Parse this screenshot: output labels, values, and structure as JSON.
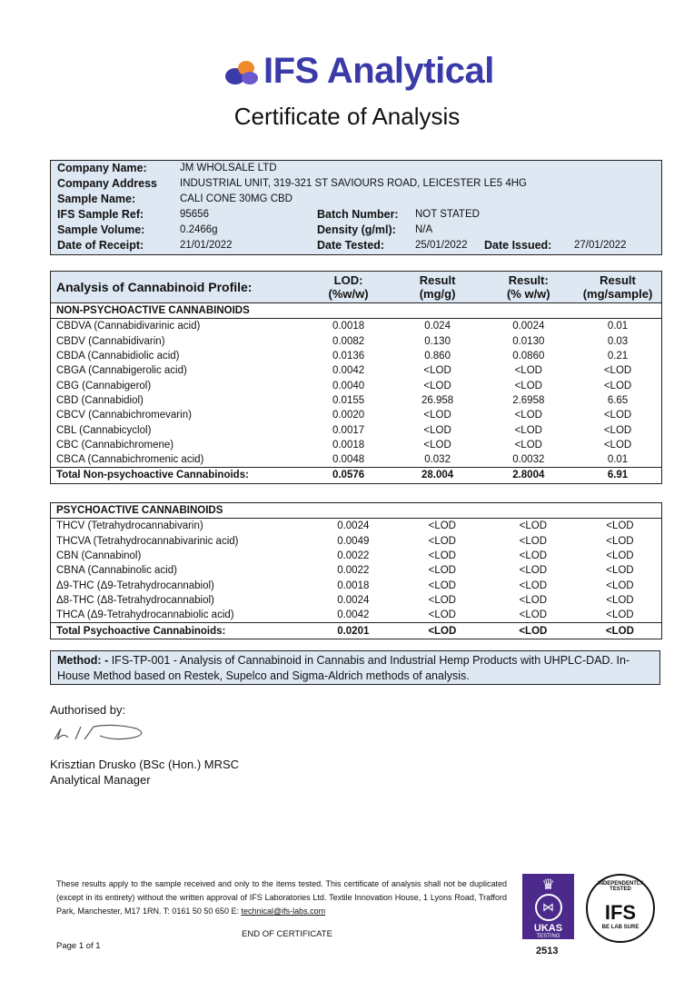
{
  "brand": {
    "name": "IFS Analytical",
    "colors": {
      "primary": "#3a3aa8",
      "accent": "#f08a2a"
    }
  },
  "title": "Certificate of Analysis",
  "info": [
    {
      "label": "Company Name:",
      "value": "JM WHOLSALE LTD"
    },
    {
      "label": "Company Address",
      "value": "INDUSTRIAL UNIT, 319-321 ST SAVIOURS ROAD, LEICESTER LE5 4HG"
    },
    {
      "label": "Sample Name:",
      "value": "CALI CONE 30MG CBD"
    },
    {
      "label": "IFS Sample Ref:",
      "value": "95656",
      "label2": "Batch Number:",
      "value2": "NOT STATED"
    },
    {
      "label": "Sample Volume:",
      "value": "0.2466g",
      "label2": "Density (g/ml):",
      "value2": "N/A"
    },
    {
      "label": "Date of Receipt:",
      "value": "21/01/2022",
      "label2": "Date Tested:",
      "value2": "25/01/2022",
      "label3": "Date Issued:",
      "value3": "27/01/2022"
    }
  ],
  "analysis": {
    "headers": [
      "Analysis of Cannabinoid Profile:",
      "LOD:\n(%w/w)",
      "Result\n(mg/g)",
      "Result:\n(% w/w)",
      "Result\n(mg/sample)"
    ],
    "non_psycho": {
      "section": "NON-PSYCHOACTIVE CANNABINOIDS",
      "rows": [
        [
          "CBDVA (Cannabidivarinic acid)",
          "0.0018",
          "0.024",
          "0.0024",
          "0.01"
        ],
        [
          "CBDV (Cannabidivarin)",
          "0.0082",
          "0.130",
          "0.0130",
          "0.03"
        ],
        [
          "CBDA (Cannabidiolic acid)",
          "0.0136",
          "0.860",
          "0.0860",
          "0.21"
        ],
        [
          "CBGA (Cannabigerolic acid)",
          "0.0042",
          "<LOD",
          "<LOD",
          "<LOD"
        ],
        [
          "CBG (Cannabigerol)",
          "0.0040",
          "<LOD",
          "<LOD",
          "<LOD"
        ],
        [
          "CBD (Cannabidiol)",
          "0.0155",
          "26.958",
          "2.6958",
          "6.65"
        ],
        [
          "CBCV (Cannabichromevarin)",
          "0.0020",
          "<LOD",
          "<LOD",
          "<LOD"
        ],
        [
          "CBL (Cannabicyclol)",
          "0.0017",
          "<LOD",
          "<LOD",
          "<LOD"
        ],
        [
          "CBC (Cannabichromene)",
          "0.0018",
          "<LOD",
          "<LOD",
          "<LOD"
        ],
        [
          "CBCA (Cannabichromenic acid)",
          "0.0048",
          "0.032",
          "0.0032",
          "0.01"
        ]
      ],
      "total": [
        "Total Non-psychoactive Cannabinoids:",
        "0.0576",
        "28.004",
        "2.8004",
        "6.91"
      ]
    },
    "psycho": {
      "section": "PSYCHOACTIVE CANNABINOIDS",
      "rows": [
        [
          "THCV (Tetrahydrocannabivarin)",
          "0.0024",
          "<LOD",
          "<LOD",
          "<LOD"
        ],
        [
          "THCVA (Tetrahydrocannabivarinic acid)",
          "0.0049",
          "<LOD",
          "<LOD",
          "<LOD"
        ],
        [
          "CBN (Cannabinol)",
          "0.0022",
          "<LOD",
          "<LOD",
          "<LOD"
        ],
        [
          "CBNA (Cannabinolic acid)",
          "0.0022",
          "<LOD",
          "<LOD",
          "<LOD"
        ],
        [
          "Δ9-THC (Δ9-Tetrahydrocannabiol)",
          "0.0018",
          "<LOD",
          "<LOD",
          "<LOD"
        ],
        [
          "Δ8-THC (Δ8-Tetrahydrocannabiol)",
          "0.0024",
          "<LOD",
          "<LOD",
          "<LOD"
        ],
        [
          "THCA (Δ9-Tetrahydrocannabiolic acid)",
          "0.0042",
          "<LOD",
          "<LOD",
          "<LOD"
        ]
      ],
      "total": [
        "Total Psychoactive Cannabinoids:",
        "0.0201",
        "<LOD",
        "<LOD",
        "<LOD"
      ]
    }
  },
  "method": {
    "label": "Method: -",
    "text": " IFS-TP-001 - Analysis of Cannabinoid in Cannabis and Industrial Hemp Products with UHPLC-DAD. In-House Method based on Restek, Supelco and Sigma-Aldrich methods of analysis."
  },
  "authorised_by": "Authorised by:",
  "signatory": {
    "name": "Krisztian Drusko (BSc (Hon.) MRSC",
    "role": "Analytical Manager"
  },
  "footer": {
    "text": "These results apply to the sample received and only to the items tested. This certificate of analysis shall not be duplicated (except in its entirety) without the written approval of IFS Laboratories Ltd. Textile Innovation House, 1 Lyons Road, Trafford Park, Manchester, M17 1RN. T: 0161 50 50 650 E: ",
    "email": "technical@ifs-labs.com",
    "end": "END OF CERTIFICATE",
    "page": "Page 1 of 1"
  },
  "ukas": {
    "label": "UKAS",
    "sub": "TESTING",
    "number": "2513"
  },
  "seal": {
    "top": "INDEPENDENTLY TESTED",
    "mid": "IFS",
    "bottom": "BE LAB SURE"
  }
}
